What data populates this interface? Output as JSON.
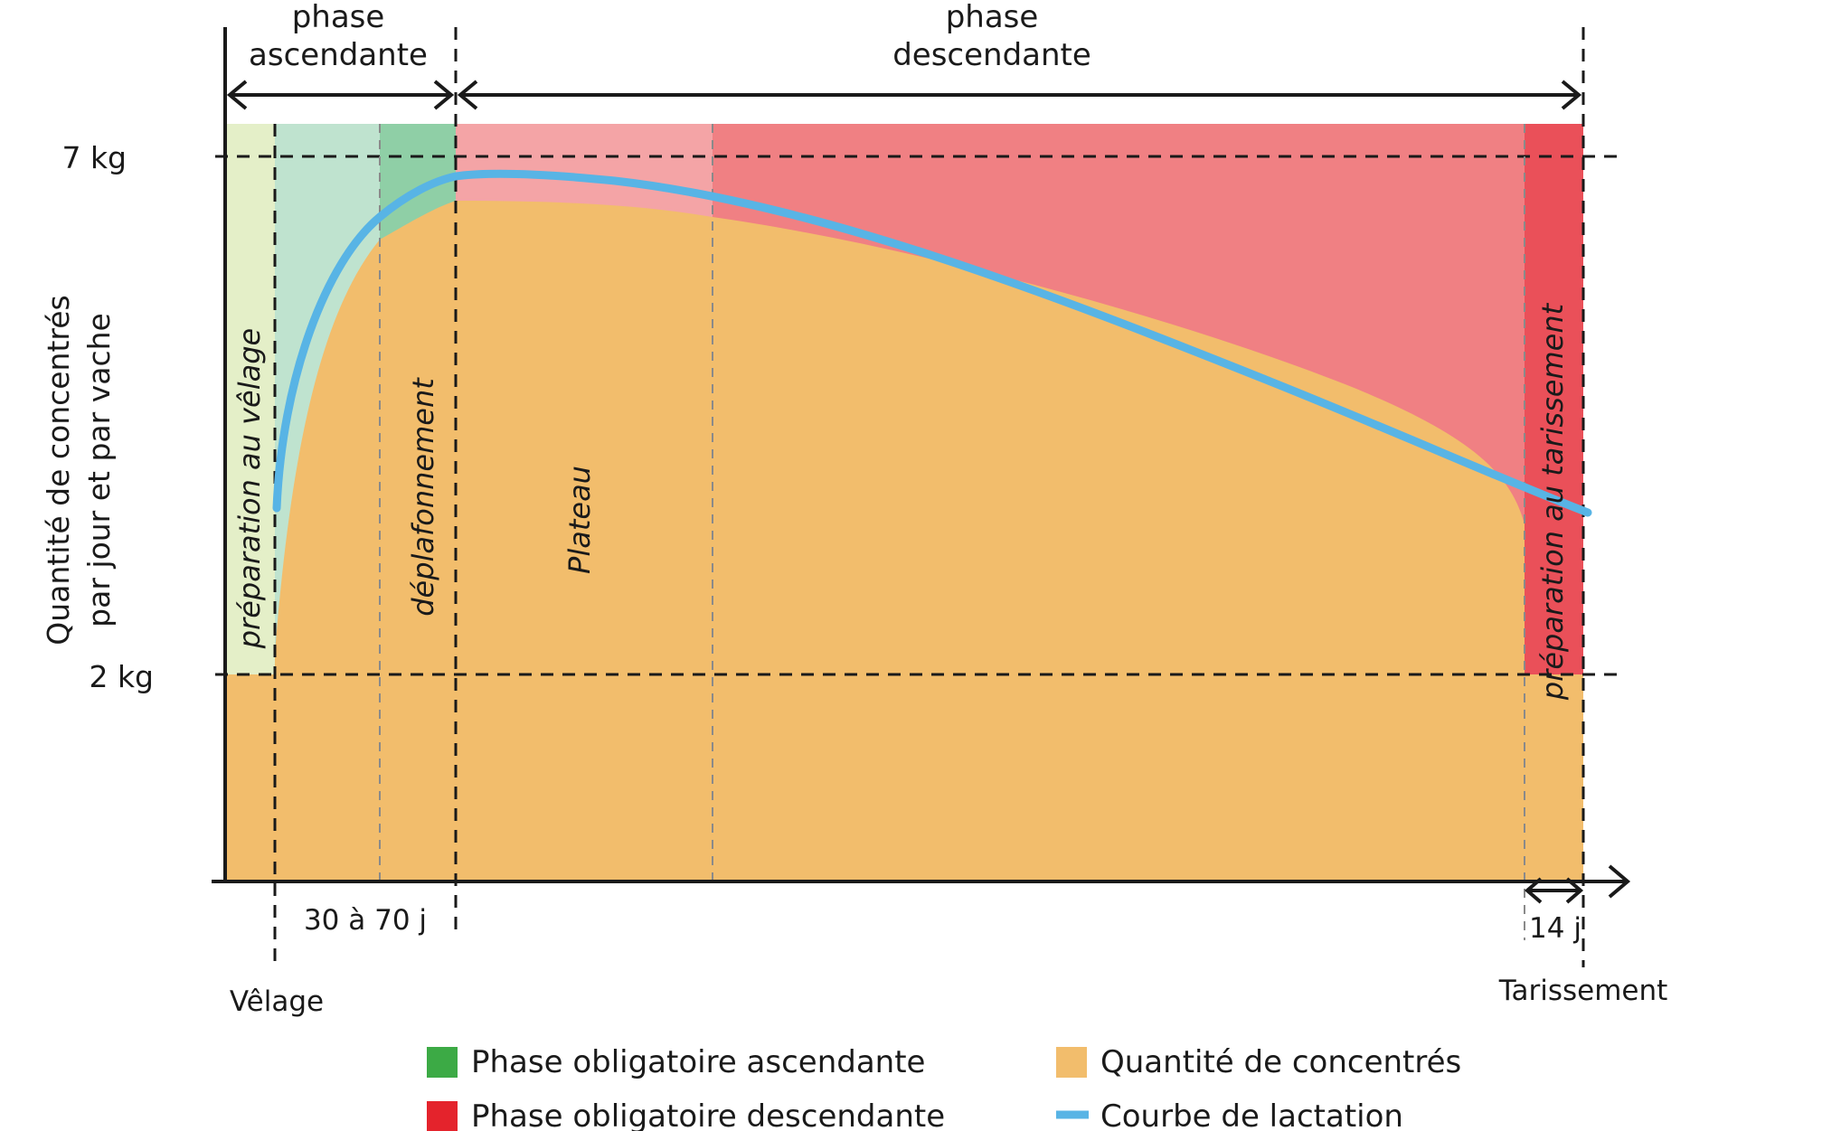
{
  "header": {
    "phase_ascending": [
      "phase",
      "ascendante"
    ],
    "phase_descending": [
      "phase",
      "descendante"
    ]
  },
  "y_axis": {
    "title": [
      "Quantité de concentrés",
      "par jour et par vache"
    ],
    "tick_high": "7 kg",
    "tick_low": "2 kg"
  },
  "zones": {
    "calving_prep": "préparation au vêlage",
    "ceiling_lift": "déplafonnement",
    "plateau": "Plateau",
    "drying_prep": "préparation au tarissement"
  },
  "x_axis": {
    "interval_ascending": "30 à 70 j",
    "interval_drying": "14 j",
    "calving": "Vêlage",
    "drying_off": "Tarissement"
  },
  "legend": {
    "ascending": "Phase obligatoire ascendante",
    "descending": "Phase obligatoire descendante",
    "concentrates": "Quantité de concentrés",
    "lactation": "Courbe de lactation"
  },
  "colors": {
    "prep_calving": "#e4efc8",
    "ascending_light": "#bfe3cf",
    "ascending_dark": "#8fcfa6",
    "plateau_pink": "#f4a4a6",
    "descending_red": "#f08083",
    "drying_red": "#ea5059",
    "concentrates": "#f2bd6c",
    "lactation": "#58b4e5",
    "legend_green": "#3caa45",
    "legend_red": "#e4232c"
  }
}
